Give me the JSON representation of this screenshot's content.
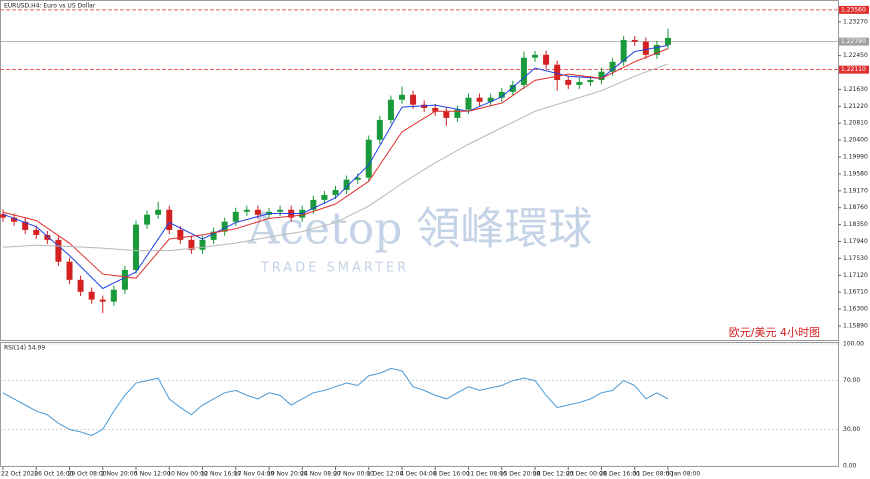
{
  "chart_data": {
    "type": "candlestick",
    "title": "EURUSD,H4: Euro vs US Dollar",
    "annotation": "欧元/美元  4小时图",
    "watermark": "Acetop 領峰環球",
    "watermark_sub": "TRADE SMARTER",
    "grid": false,
    "categories": [
      "22 Oct 2020",
      null,
      null,
      "26 Oct 16:00",
      null,
      null,
      "29 Oct 08:00",
      null,
      null,
      "2 Nov 20:00",
      null,
      null,
      "5 Nov 12:00",
      null,
      null,
      "10 Nov 00:00",
      null,
      null,
      "12 Nov 16:00",
      null,
      null,
      "17 Nov 04:00",
      null,
      null,
      "19 Nov 20:00",
      null,
      null,
      "24 Nov 08:00",
      null,
      null,
      "27 Nov 00:00",
      null,
      null,
      "1 Dec 12:00",
      null,
      null,
      "4 Dec 04:00",
      null,
      null,
      "8 Dec 16:00",
      null,
      null,
      "11 Dec 08:00",
      null,
      null,
      "15 Dec 20:00",
      null,
      null,
      "18 Dec 12:00",
      null,
      null,
      "23 Dec 00:00",
      null,
      null,
      "28 Dec 16:00",
      null,
      null,
      "31 Dec 08:00",
      null,
      null,
      "5 Jan 08:00"
    ],
    "open": [
      1.186,
      1.1852,
      1.1842,
      1.1822,
      1.181,
      1.1798,
      1.1745,
      1.1701,
      1.1672,
      1.1653,
      1.1648,
      1.1677,
      1.1725,
      1.1835,
      1.1859,
      1.1871,
      1.1822,
      1.1798,
      1.1774,
      1.1798,
      1.1818,
      1.1842,
      1.1866,
      1.1871,
      1.1859,
      1.1866,
      1.1871,
      1.1852,
      1.1871,
      1.1895,
      1.1907,
      1.1919,
      1.1944,
      1.1949,
      1.2041,
      1.2089,
      1.2138,
      1.215,
      1.2126,
      1.2118,
      1.2109,
      1.2094,
      1.2114,
      1.2143,
      1.2133,
      1.2143,
      1.2157,
      1.2174,
      1.224,
      1.2247,
      1.2223,
      1.2186,
      1.2174,
      1.2181,
      1.2186,
      1.2206,
      1.223,
      1.2283,
      1.2279,
      1.2247,
      1.2271
    ],
    "high": [
      1.1872,
      1.1862,
      1.1852,
      1.1832,
      1.182,
      1.1808,
      1.1755,
      1.1711,
      1.1682,
      1.1663,
      1.1687,
      1.1735,
      1.1845,
      1.1869,
      1.189,
      1.1881,
      1.1832,
      1.1808,
      1.1808,
      1.1828,
      1.1852,
      1.1876,
      1.1881,
      1.1881,
      1.1876,
      1.1881,
      1.1881,
      1.1881,
      1.1905,
      1.1917,
      1.1929,
      1.1954,
      1.1959,
      1.2051,
      1.2099,
      1.2148,
      1.217,
      1.216,
      1.2136,
      1.2128,
      1.2119,
      1.2124,
      1.2153,
      1.2153,
      1.2153,
      1.2167,
      1.2184,
      1.2255,
      1.2257,
      1.2257,
      1.2233,
      1.2196,
      1.2191,
      1.2196,
      1.2216,
      1.224,
      1.2293,
      1.2293,
      1.2289,
      1.2281,
      1.231
    ],
    "low": [
      1.1842,
      1.1832,
      1.1812,
      1.18,
      1.1788,
      1.1735,
      1.1691,
      1.1662,
      1.1643,
      1.162,
      1.1638,
      1.1667,
      1.1715,
      1.1825,
      1.1849,
      1.1812,
      1.1788,
      1.1764,
      1.1764,
      1.1788,
      1.1808,
      1.1832,
      1.1856,
      1.1849,
      1.1849,
      1.1856,
      1.1842,
      1.1842,
      1.1861,
      1.1885,
      1.1897,
      1.1909,
      1.1934,
      1.1939,
      1.2031,
      1.2079,
      1.2128,
      1.2116,
      1.2108,
      1.2099,
      1.2075,
      1.2084,
      1.2104,
      1.2123,
      1.2123,
      1.2133,
      1.2147,
      1.2164,
      1.223,
      1.2213,
      1.216,
      1.2164,
      1.2164,
      1.2171,
      1.2176,
      1.2196,
      1.222,
      1.2269,
      1.2237,
      1.2237,
      1.2261
    ],
    "close": [
      1.1852,
      1.1842,
      1.1822,
      1.181,
      1.1798,
      1.1745,
      1.1701,
      1.1672,
      1.1653,
      1.1648,
      1.1677,
      1.1725,
      1.1835,
      1.1859,
      1.1871,
      1.1822,
      1.1798,
      1.1774,
      1.1798,
      1.1818,
      1.1842,
      1.1866,
      1.1871,
      1.1859,
      1.1866,
      1.1871,
      1.1852,
      1.1871,
      1.1895,
      1.1907,
      1.1919,
      1.1944,
      1.1949,
      1.2041,
      1.2089,
      1.2138,
      1.215,
      1.2126,
      1.2118,
      1.2109,
      1.2094,
      1.2114,
      1.2143,
      1.2133,
      1.2143,
      1.2157,
      1.2174,
      1.224,
      1.2247,
      1.2223,
      1.2186,
      1.2174,
      1.2181,
      1.2186,
      1.2206,
      1.223,
      1.2283,
      1.2279,
      1.2247,
      1.2271,
      1.2288
    ],
    "up_color": "#1a9a3a",
    "down_color": "#d42020",
    "ma": [
      {
        "color": "#2040e0",
        "x": [
          0,
          3,
          6,
          9,
          12,
          15,
          18,
          21,
          24,
          27,
          30,
          33,
          36,
          39,
          42,
          45,
          48,
          51,
          54,
          57,
          60
        ],
        "values": [
          1.186,
          1.183,
          1.176,
          1.168,
          1.172,
          1.184,
          1.18,
          1.184,
          1.1862,
          1.1862,
          1.19,
          1.198,
          1.212,
          1.2125,
          1.211,
          1.2145,
          1.2215,
          1.2195,
          1.219,
          1.2255,
          1.227
        ]
      },
      {
        "color": "#e03030",
        "x": [
          0,
          3,
          6,
          9,
          12,
          15,
          18,
          21,
          24,
          27,
          30,
          33,
          36,
          39,
          42,
          45,
          48,
          51,
          54,
          57,
          60
        ],
        "values": [
          1.1865,
          1.1845,
          1.179,
          1.1715,
          1.1705,
          1.18,
          1.181,
          1.1825,
          1.185,
          1.1858,
          1.1885,
          1.194,
          1.206,
          1.211,
          1.211,
          1.213,
          1.2185,
          1.22,
          1.219,
          1.223,
          1.2262
        ]
      },
      {
        "color": "#b8b8b8",
        "x": [
          0,
          3,
          6,
          9,
          12,
          15,
          18,
          21,
          24,
          27,
          30,
          33,
          36,
          39,
          42,
          45,
          48,
          51,
          54,
          57,
          60
        ],
        "values": [
          1.178,
          1.1785,
          1.1782,
          1.1778,
          1.1772,
          1.1772,
          1.178,
          1.179,
          1.1805,
          1.1818,
          1.184,
          1.188,
          1.1935,
          1.1985,
          1.203,
          1.207,
          1.211,
          1.2135,
          1.216,
          1.2195,
          1.2225
        ]
      }
    ],
    "ylim": [
      1.1555,
      1.238
    ],
    "yticks": [
      {
        "value": 1.2327,
        "label": "1.23270"
      },
      {
        "value": 1.2245,
        "label": "1.22450"
      },
      {
        "value": 1.2163,
        "label": "1.21630"
      },
      {
        "value": 1.2122,
        "label": "1.21220"
      },
      {
        "value": 1.2081,
        "label": "1.20810"
      },
      {
        "value": 1.204,
        "label": "1.20400"
      },
      {
        "value": 1.1999,
        "label": "1.19990"
      },
      {
        "value": 1.1958,
        "label": "1.19580"
      },
      {
        "value": 1.1917,
        "label": "1.19170"
      },
      {
        "value": 1.1876,
        "label": "1.18760"
      },
      {
        "value": 1.1835,
        "label": "1.18350"
      },
      {
        "value": 1.1794,
        "label": "1.17940"
      },
      {
        "value": 1.1753,
        "label": "1.17530"
      },
      {
        "value": 1.1712,
        "label": "1.17120"
      },
      {
        "value": 1.1671,
        "label": "1.16710"
      },
      {
        "value": 1.163,
        "label": "1.16300"
      },
      {
        "value": 1.1589,
        "label": "1.15890"
      }
    ],
    "levels": [
      {
        "value": 1.2356,
        "label": "1.23560",
        "color": "#e03030",
        "dashed": true
      },
      {
        "value": 1.2279,
        "label": "1.22790",
        "color": "#a0a0a0",
        "dashed": false
      },
      {
        "value": 1.2211,
        "label": "1.22110",
        "color": "#e03030",
        "dashed": true
      }
    ],
    "rsi": {
      "title": "RSI(14) 54.99",
      "color": "#4a9ad8",
      "ylim": [
        0,
        100
      ],
      "yticks": [
        {
          "value": 100,
          "label": "100.00"
        },
        {
          "value": 70,
          "label": "70.00"
        },
        {
          "value": 30,
          "label": "30.00"
        },
        {
          "value": 0,
          "label": "0.00"
        }
      ],
      "values": [
        60,
        55,
        50,
        45,
        42,
        35,
        30,
        28,
        25,
        30,
        45,
        58,
        68,
        70,
        72,
        55,
        48,
        42,
        50,
        55,
        60,
        62,
        58,
        55,
        60,
        58,
        50,
        55,
        60,
        62,
        65,
        68,
        66,
        74,
        76,
        80,
        78,
        65,
        62,
        58,
        55,
        60,
        65,
        62,
        64,
        66,
        70,
        72,
        70,
        58,
        48,
        50,
        52,
        55,
        60,
        62,
        70,
        66,
        55,
        60,
        55
      ]
    }
  }
}
